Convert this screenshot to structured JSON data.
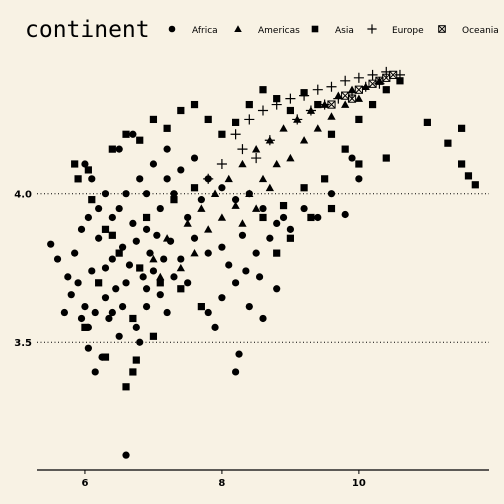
{
  "chart_data": {
    "type": "scatter",
    "title": "",
    "xlabel": "",
    "ylabel": "",
    "x_scale": "log10",
    "y_scale": "log10",
    "xlim": [
      5.3,
      11.9
    ],
    "ylim": [
      3.07,
      4.45
    ],
    "x_ticks": [
      6,
      8,
      10
    ],
    "x_tick_labels": [
      "6",
      "8",
      "10"
    ],
    "y_ticks": [
      3.5,
      4.0
    ],
    "y_tick_labels": [
      "3.5",
      "4.0"
    ],
    "grid": "horizontal dotted",
    "legend_title": "continent",
    "legend_position": "top",
    "colors": {
      "background": "#f8f2e4",
      "marks": "#000000"
    },
    "series": [
      {
        "name": "Africa",
        "shape": "circle",
        "points": [
          [
            6.6,
            3.12
          ],
          [
            6.05,
            3.48
          ],
          [
            6.15,
            3.4
          ],
          [
            6.25,
            3.45
          ],
          [
            6.5,
            3.52
          ],
          [
            6.8,
            3.5
          ],
          [
            6.4,
            3.6
          ],
          [
            6.3,
            3.65
          ],
          [
            6.0,
            3.62
          ],
          [
            5.9,
            3.7
          ],
          [
            5.6,
            3.78
          ],
          [
            5.5,
            3.83
          ],
          [
            5.85,
            3.8
          ],
          [
            6.1,
            3.74
          ],
          [
            6.2,
            3.85
          ],
          [
            6.4,
            3.78
          ],
          [
            6.6,
            3.7
          ],
          [
            6.9,
            3.62
          ],
          [
            7.1,
            3.66
          ],
          [
            7.3,
            3.72
          ],
          [
            7.5,
            3.7
          ],
          [
            7.8,
            3.6
          ],
          [
            8.0,
            3.65
          ],
          [
            8.2,
            3.7
          ],
          [
            8.4,
            3.62
          ],
          [
            8.6,
            3.58
          ],
          [
            8.8,
            3.68
          ],
          [
            8.2,
            3.4
          ],
          [
            8.25,
            3.46
          ],
          [
            7.9,
            3.55
          ],
          [
            6.0,
            4.1
          ],
          [
            6.1,
            4.05
          ],
          [
            6.3,
            4.0
          ],
          [
            6.5,
            3.95
          ],
          [
            6.7,
            3.9
          ],
          [
            6.9,
            3.88
          ],
          [
            7.1,
            3.95
          ],
          [
            7.3,
            4.0
          ],
          [
            7.5,
            3.92
          ],
          [
            7.7,
            3.98
          ],
          [
            6.8,
            4.05
          ],
          [
            7.0,
            4.1
          ],
          [
            7.2,
            4.15
          ],
          [
            7.4,
            4.08
          ],
          [
            7.6,
            4.12
          ],
          [
            7.8,
            4.05
          ],
          [
            8.0,
            4.02
          ],
          [
            8.2,
            3.98
          ],
          [
            8.4,
            4.0
          ],
          [
            8.6,
            3.95
          ],
          [
            8.8,
            3.9
          ],
          [
            9.0,
            3.88
          ],
          [
            9.2,
            3.95
          ],
          [
            9.4,
            3.92
          ],
          [
            9.6,
            4.0
          ],
          [
            9.8,
            3.93
          ],
          [
            10.0,
            4.05
          ],
          [
            9.9,
            4.12
          ],
          [
            6.5,
            4.15
          ],
          [
            6.7,
            4.2
          ],
          [
            6.3,
            3.75
          ],
          [
            6.45,
            3.68
          ],
          [
            6.55,
            3.82
          ],
          [
            6.65,
            3.76
          ],
          [
            6.75,
            3.84
          ],
          [
            6.85,
            3.72
          ],
          [
            6.95,
            3.8
          ],
          [
            7.05,
            3.86
          ],
          [
            7.15,
            3.78
          ],
          [
            7.25,
            3.84
          ],
          [
            5.95,
            3.58
          ],
          [
            6.05,
            3.55
          ],
          [
            6.15,
            3.6
          ],
          [
            6.35,
            3.58
          ],
          [
            6.55,
            3.62
          ],
          [
            6.75,
            3.55
          ],
          [
            6.9,
            3.68
          ],
          [
            7.0,
            3.74
          ],
          [
            7.2,
            3.6
          ],
          [
            7.4,
            3.78
          ],
          [
            8.0,
            3.82
          ],
          [
            8.3,
            3.86
          ],
          [
            8.5,
            3.8
          ],
          [
            8.7,
            3.85
          ],
          [
            8.9,
            3.92
          ],
          [
            6.2,
            3.95
          ],
          [
            6.4,
            3.92
          ],
          [
            6.6,
            4.0
          ],
          [
            6.9,
            4.0
          ],
          [
            7.2,
            4.05
          ],
          [
            5.75,
            3.72
          ],
          [
            5.8,
            3.66
          ],
          [
            5.7,
            3.6
          ],
          [
            5.95,
            3.88
          ],
          [
            6.05,
            3.92
          ],
          [
            7.6,
            3.85
          ],
          [
            7.8,
            3.8
          ],
          [
            8.1,
            3.76
          ],
          [
            8.35,
            3.74
          ],
          [
            8.55,
            3.72
          ]
        ]
      },
      {
        "name": "Americas",
        "shape": "triangle",
        "points": [
          [
            7.0,
            3.78
          ],
          [
            7.2,
            3.85
          ],
          [
            7.5,
            3.9
          ],
          [
            7.7,
            3.95
          ],
          [
            7.9,
            4.0
          ],
          [
            8.1,
            4.05
          ],
          [
            8.3,
            4.1
          ],
          [
            8.5,
            4.15
          ],
          [
            8.7,
            4.18
          ],
          [
            8.9,
            4.22
          ],
          [
            9.1,
            4.25
          ],
          [
            9.3,
            4.28
          ],
          [
            9.5,
            4.3
          ],
          [
            9.7,
            4.33
          ],
          [
            9.9,
            4.35
          ],
          [
            10.1,
            4.36
          ],
          [
            10.3,
            4.38
          ],
          [
            7.6,
            3.8
          ],
          [
            7.8,
            3.88
          ],
          [
            8.0,
            3.92
          ],
          [
            8.2,
            3.96
          ],
          [
            8.4,
            4.0
          ],
          [
            8.6,
            4.05
          ],
          [
            8.8,
            4.1
          ],
          [
            9.0,
            4.12
          ],
          [
            9.2,
            4.18
          ],
          [
            9.4,
            4.22
          ],
          [
            9.6,
            4.26
          ],
          [
            9.8,
            4.3
          ],
          [
            10.0,
            4.32
          ],
          [
            8.3,
            3.9
          ],
          [
            8.5,
            3.95
          ],
          [
            8.7,
            4.02
          ],
          [
            7.4,
            3.75
          ],
          [
            7.1,
            3.72
          ]
        ]
      },
      {
        "name": "Asia",
        "shape": "square",
        "points": [
          [
            6.6,
            3.35
          ],
          [
            6.7,
            3.4
          ],
          [
            6.3,
            3.45
          ],
          [
            6.0,
            3.55
          ],
          [
            5.9,
            4.05
          ],
          [
            5.85,
            4.1
          ],
          [
            6.05,
            4.08
          ],
          [
            6.4,
            4.15
          ],
          [
            6.6,
            4.2
          ],
          [
            6.8,
            4.18
          ],
          [
            7.0,
            4.25
          ],
          [
            7.2,
            4.22
          ],
          [
            7.4,
            4.28
          ],
          [
            7.6,
            4.3
          ],
          [
            7.8,
            4.25
          ],
          [
            8.0,
            4.2
          ],
          [
            8.2,
            4.24
          ],
          [
            8.4,
            4.3
          ],
          [
            8.6,
            4.35
          ],
          [
            8.8,
            4.32
          ],
          [
            9.0,
            4.28
          ],
          [
            9.2,
            4.34
          ],
          [
            9.4,
            4.3
          ],
          [
            9.6,
            4.2
          ],
          [
            9.8,
            4.15
          ],
          [
            10.0,
            4.25
          ],
          [
            10.2,
            4.3
          ],
          [
            10.4,
            4.35
          ],
          [
            10.6,
            4.38
          ],
          [
            10.0,
            4.1
          ],
          [
            11.0,
            4.24
          ],
          [
            11.3,
            4.17
          ],
          [
            11.5,
            4.22
          ],
          [
            11.6,
            4.06
          ],
          [
            11.7,
            4.03
          ],
          [
            11.5,
            4.1
          ],
          [
            9.0,
            3.85
          ],
          [
            8.8,
            3.8
          ],
          [
            9.3,
            3.92
          ],
          [
            9.6,
            3.95
          ],
          [
            6.5,
            3.8
          ],
          [
            6.8,
            3.75
          ],
          [
            7.1,
            3.7
          ],
          [
            7.4,
            3.68
          ],
          [
            7.7,
            3.62
          ],
          [
            6.2,
            3.7
          ],
          [
            6.4,
            3.86
          ],
          [
            6.9,
            3.92
          ],
          [
            7.3,
            3.98
          ],
          [
            7.6,
            4.02
          ],
          [
            8.6,
            3.92
          ],
          [
            8.9,
            3.96
          ],
          [
            9.2,
            4.02
          ],
          [
            9.5,
            4.05
          ],
          [
            10.4,
            4.12
          ],
          [
            6.1,
            3.98
          ],
          [
            6.3,
            3.88
          ],
          [
            6.7,
            3.58
          ],
          [
            7.0,
            3.52
          ],
          [
            6.75,
            3.44
          ]
        ]
      },
      {
        "name": "Europe",
        "shape": "plus",
        "points": [
          [
            8.2,
            4.2
          ],
          [
            8.4,
            4.25
          ],
          [
            8.6,
            4.28
          ],
          [
            8.8,
            4.3
          ],
          [
            9.0,
            4.32
          ],
          [
            9.2,
            4.33
          ],
          [
            9.4,
            4.35
          ],
          [
            9.6,
            4.36
          ],
          [
            9.8,
            4.38
          ],
          [
            10.0,
            4.39
          ],
          [
            10.2,
            4.4
          ],
          [
            10.4,
            4.41
          ],
          [
            10.6,
            4.4
          ],
          [
            8.5,
            4.12
          ],
          [
            8.7,
            4.18
          ],
          [
            9.1,
            4.25
          ],
          [
            9.5,
            4.3
          ],
          [
            9.9,
            4.34
          ],
          [
            10.3,
            4.37
          ],
          [
            8.0,
            4.1
          ],
          [
            7.8,
            4.05
          ],
          [
            8.3,
            4.15
          ],
          [
            9.3,
            4.28
          ],
          [
            9.7,
            4.32
          ],
          [
            10.1,
            4.36
          ]
        ]
      },
      {
        "name": "Oceania",
        "shape": "boxx",
        "points": [
          [
            9.6,
            4.3
          ],
          [
            9.8,
            4.33
          ],
          [
            10.0,
            4.35
          ],
          [
            10.2,
            4.37
          ],
          [
            10.4,
            4.39
          ],
          [
            10.5,
            4.4
          ],
          [
            9.9,
            4.32
          ],
          [
            10.3,
            4.38
          ]
        ]
      }
    ]
  }
}
